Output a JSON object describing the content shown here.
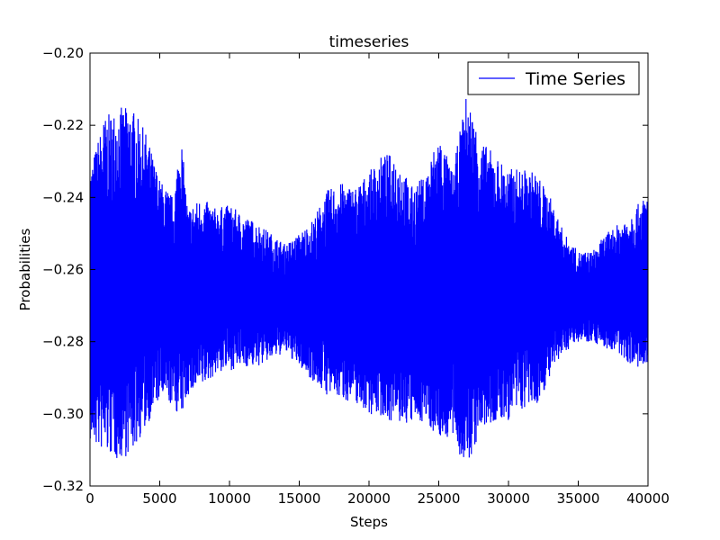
{
  "chart_data": {
    "type": "line",
    "title": "timeseries",
    "xlabel": "Steps",
    "ylabel": "Probabilities",
    "xlim": [
      0,
      40000
    ],
    "ylim": [
      -0.32,
      -0.2
    ],
    "xticks": [
      0,
      5000,
      10000,
      15000,
      20000,
      25000,
      30000,
      35000,
      40000
    ],
    "xtick_labels": [
      "0",
      "5000",
      "10000",
      "15000",
      "20000",
      "25000",
      "30000",
      "35000",
      "40000"
    ],
    "yticks": [
      -0.32,
      -0.3,
      -0.28,
      -0.26,
      -0.24,
      -0.22,
      -0.2
    ],
    "ytick_labels": [
      "−0.32",
      "−0.30",
      "−0.28",
      "−0.26",
      "−0.24",
      "−0.22",
      "−0.20"
    ],
    "grid": false,
    "legend": {
      "position": "top-right",
      "entries": [
        "Time Series"
      ]
    },
    "series": [
      {
        "name": "Time Series",
        "color": "#0000ff",
        "x_start": 0,
        "x_end": 40000,
        "envelope": {
          "x": [
            0,
            1000,
            2000,
            3000,
            4000,
            5000,
            6000,
            6500,
            7000,
            8000,
            9000,
            10000,
            11000,
            12000,
            13000,
            14000,
            15000,
            16000,
            17000,
            18000,
            19000,
            20000,
            21000,
            22000,
            23000,
            24000,
            25000,
            26000,
            27000,
            28000,
            29000,
            30000,
            31000,
            32000,
            33000,
            34000,
            35000,
            36000,
            37000,
            38000,
            39000,
            40000
          ],
          "upper": [
            -0.232,
            -0.218,
            -0.215,
            -0.215,
            -0.222,
            -0.235,
            -0.24,
            -0.221,
            -0.243,
            -0.24,
            -0.243,
            -0.242,
            -0.245,
            -0.247,
            -0.25,
            -0.253,
            -0.25,
            -0.246,
            -0.238,
            -0.236,
            -0.237,
            -0.233,
            -0.228,
            -0.228,
            -0.237,
            -0.234,
            -0.222,
            -0.233,
            -0.211,
            -0.224,
            -0.228,
            -0.232,
            -0.232,
            -0.233,
            -0.24,
            -0.25,
            -0.255,
            -0.255,
            -0.25,
            -0.247,
            -0.243,
            -0.239
          ],
          "lower": [
            -0.308,
            -0.311,
            -0.313,
            -0.311,
            -0.304,
            -0.296,
            -0.298,
            -0.302,
            -0.295,
            -0.293,
            -0.289,
            -0.288,
            -0.287,
            -0.287,
            -0.285,
            -0.283,
            -0.287,
            -0.291,
            -0.295,
            -0.296,
            -0.297,
            -0.3,
            -0.301,
            -0.303,
            -0.303,
            -0.302,
            -0.307,
            -0.307,
            -0.316,
            -0.305,
            -0.303,
            -0.302,
            -0.299,
            -0.298,
            -0.29,
            -0.283,
            -0.28,
            -0.28,
            -0.282,
            -0.284,
            -0.287,
            -0.289
          ]
        }
      }
    ]
  }
}
